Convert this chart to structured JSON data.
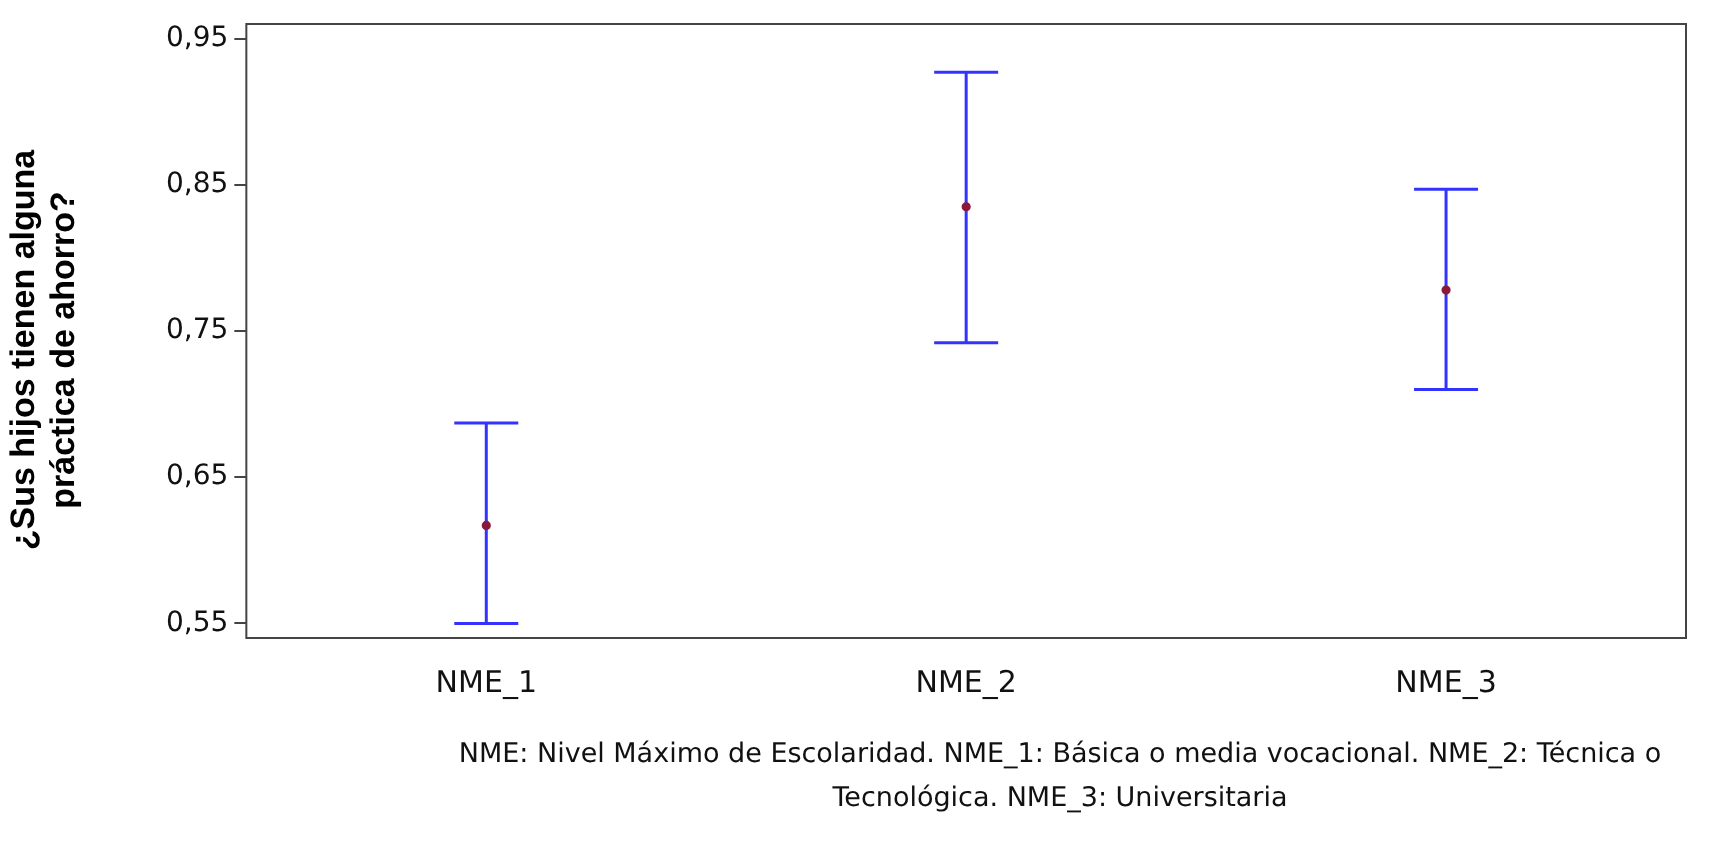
{
  "chart_data": {
    "type": "scatter",
    "ylabel": "¿Sus hijos tienen alguna práctica de ahorro?",
    "categories": [
      "NME_1",
      "NME_2",
      "NME_3"
    ],
    "series": [
      {
        "color": "#3333ff",
        "colors": [
          "#8b1a3a",
          "#8b1a3a",
          "#8b1a3a"
        ],
        "values": [
          0.617,
          0.835,
          0.778
        ],
        "errors": [
          [
            0.55,
            0.687
          ],
          [
            0.742,
            0.927
          ],
          [
            0.71,
            0.847
          ]
        ]
      }
    ],
    "ylim": [
      0.54,
      0.96
    ],
    "yticks": [
      {
        "value": 0.55,
        "label": "0,55"
      },
      {
        "value": 0.65,
        "label": "0,65"
      },
      {
        "value": 0.75,
        "label": "0,75"
      },
      {
        "value": 0.85,
        "label": "0,85"
      },
      {
        "value": 0.95,
        "label": "0,95"
      }
    ],
    "grid": false,
    "legend": false,
    "marker": "circle",
    "annotations": [
      "NME: Nivel Máximo de Escolaridad. NME_1: Básica o media vocacional. NME_2: Técnica o Tecnológica. NME_3: Universitaria"
    ]
  }
}
